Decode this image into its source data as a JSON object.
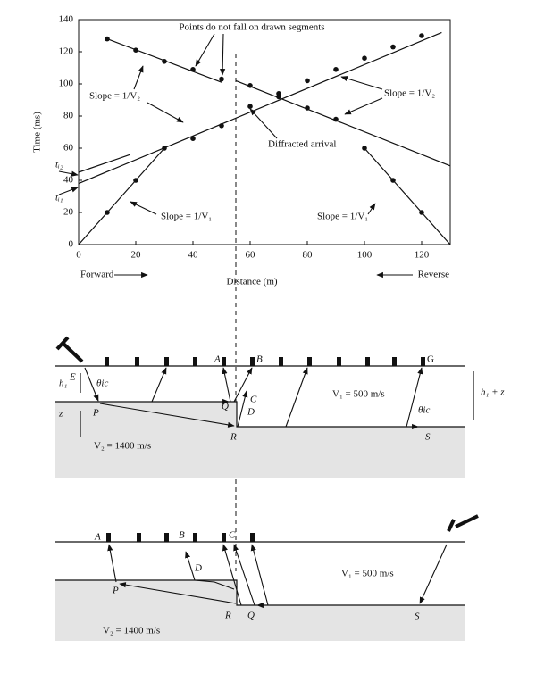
{
  "chart_data": {
    "type": "scatter",
    "x_label": "Distance (m)",
    "y_label": "Time (ms)",
    "xlim": [
      0,
      130
    ],
    "ylim": [
      0,
      140
    ],
    "xticks": [
      0,
      20,
      40,
      60,
      80,
      100,
      120
    ],
    "yticks": [
      0,
      20,
      40,
      60,
      80,
      100,
      120,
      140
    ],
    "series": [
      {
        "name": "Forward",
        "color": "#111111",
        "x": [
          10,
          20,
          30,
          40,
          50,
          60,
          70,
          80,
          90,
          100,
          110,
          120
        ],
        "values": [
          20,
          40,
          60,
          66,
          74,
          86,
          94,
          102,
          109,
          116,
          123,
          130
        ]
      },
      {
        "name": "Reverse",
        "color": "#111111",
        "x": [
          10,
          20,
          30,
          40,
          50,
          60,
          70,
          80,
          90,
          100,
          110,
          120
        ],
        "values": [
          128,
          121,
          114,
          109,
          103,
          99,
          92,
          85,
          78,
          60,
          40,
          20
        ]
      }
    ],
    "segments": [
      {
        "x": [
          0,
          30
        ],
        "y": [
          0,
          60
        ]
      },
      {
        "x": [
          0,
          127
        ],
        "y": [
          38,
          132
        ]
      },
      {
        "x": [
          0,
          18
        ],
        "y": [
          45,
          56
        ]
      },
      {
        "x": [
          10,
          50
        ],
        "y": [
          128,
          101
        ]
      },
      {
        "x": [
          55,
          130
        ],
        "y": [
          102,
          49
        ]
      },
      {
        "x": [
          100,
          130
        ],
        "y": [
          60,
          0
        ]
      }
    ],
    "annotations": [
      "Points do not fall on drawn segments",
      "Slope = 1/V₂",
      "Slope = 1/V₂",
      "Diffracted arrival",
      "tᵢ₂",
      "tᵢ₁",
      "Slope = 1/V₁",
      "Slope = 1/V₁"
    ]
  },
  "diagrams": [
    {
      "labels": [
        "A",
        "B",
        "G",
        "E",
        "θic",
        "h₁",
        "z",
        "P",
        "Q",
        "C",
        "D",
        "R",
        "V₁ = 500 m/s",
        "θic",
        "S",
        "V₂ = 1400 m/s",
        "h₁ + z"
      ]
    },
    {
      "labels": [
        "A",
        "B",
        "C",
        "D",
        "P",
        "R",
        "Q",
        "V₁ = 500 m/s",
        "S",
        "V₂ = 1400 m/s"
      ]
    }
  ]
}
